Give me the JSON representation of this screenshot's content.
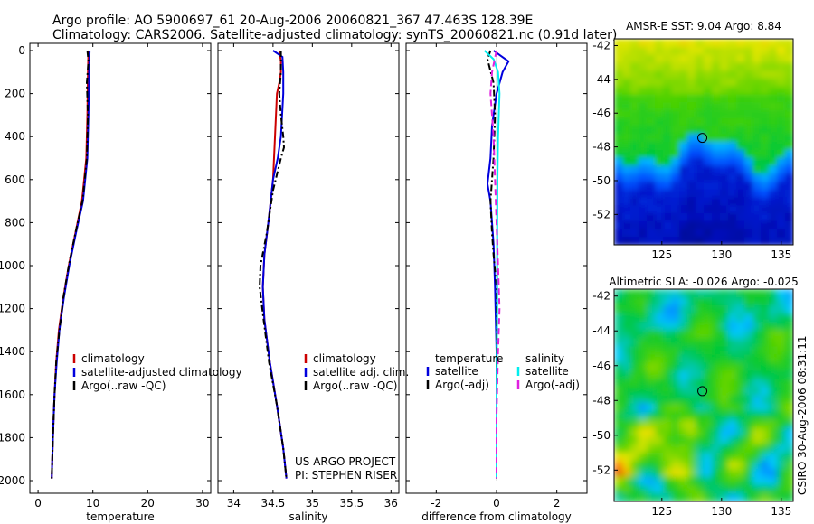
{
  "figure": {
    "title_line1": "Argo profile: AO 5900697_61 20-Aug-2006 20060821_367 47.463S 128.39E",
    "title_line2": "Climatology: CARS2006. Satellite-adjusted climatology: synTS_20060821.nc (0.91d later)",
    "project_line1": "US ARGO PROJECT",
    "project_line2": "PI: STEPHEN RISER",
    "footer": "CSIRO 30-Aug-2006 08:31:11"
  },
  "colors": {
    "climatology": "#cc0000",
    "satellite": "#0000dd",
    "argo": "#000000",
    "satellite_salinity": "#00eeee",
    "argo_salinity_adj": "#e020e0"
  },
  "chart_data": [
    {
      "id": "temperature",
      "type": "line",
      "title": "",
      "xlabel": "temperature",
      "ylabel": "",
      "xlim": [
        -1.5,
        31.5
      ],
      "ylim": [
        2000,
        0
      ],
      "xticks": [
        0,
        10,
        20,
        30
      ],
      "yticks": [
        0,
        200,
        400,
        600,
        800,
        1000,
        1200,
        1400,
        1600,
        1800,
        2000
      ],
      "legend": [
        "climatology",
        "satellite-adjusted climatology",
        "Argo(..raw -QC)"
      ],
      "legend_colors": [
        "#cc0000",
        "#0000dd",
        "#000000"
      ],
      "legend_placement": "lower-right",
      "series": [
        {
          "name": "climatology",
          "color": "#cc0000",
          "dash": "solid",
          "x": [
            9.2,
            9.1,
            9.0,
            8.8,
            8.0,
            6.8,
            5.6,
            4.6,
            3.8,
            3.3,
            3.0,
            2.7,
            2.5
          ],
          "y": [
            0,
            100,
            300,
            500,
            700,
            850,
            1000,
            1150,
            1300,
            1450,
            1600,
            1800,
            1990
          ]
        },
        {
          "name": "satellite-adjusted climatology",
          "color": "#0000dd",
          "dash": "solid",
          "x": [
            9.4,
            9.3,
            9.2,
            9.0,
            8.2,
            6.9,
            5.7,
            4.7,
            3.9,
            3.4,
            3.0,
            2.7,
            2.5
          ],
          "y": [
            0,
            100,
            300,
            500,
            700,
            850,
            1000,
            1150,
            1300,
            1450,
            1600,
            1800,
            1990
          ]
        },
        {
          "name": "Argo(..raw -QC)",
          "color": "#000000",
          "dash": "dashdot",
          "x": [
            9.0,
            9.2,
            8.9,
            9.1,
            8.9,
            8.1,
            6.8,
            5.6,
            4.6,
            3.9,
            3.3,
            3.0,
            2.7,
            2.5
          ],
          "y": [
            0,
            50,
            150,
            300,
            500,
            700,
            850,
            1000,
            1150,
            1300,
            1450,
            1600,
            1800,
            1990
          ]
        }
      ]
    },
    {
      "id": "salinity",
      "type": "line",
      "xlabel": "salinity",
      "ylabel": "",
      "xlim": [
        33.8,
        36.1
      ],
      "ylim": [
        2000,
        0
      ],
      "xticks": [
        34,
        34.5,
        35,
        35.5,
        36
      ],
      "yticks": [],
      "legend": [
        "climatology",
        "satellite adj. clim.",
        "Argo(..raw -QC)"
      ],
      "legend_colors": [
        "#cc0000",
        "#0000dd",
        "#000000"
      ],
      "legend_placement": "lower-right",
      "series": [
        {
          "name": "climatology",
          "color": "#cc0000",
          "dash": "solid",
          "x": [
            34.58,
            34.6,
            34.6,
            34.58,
            34.55,
            34.5,
            34.44,
            34.39,
            34.37,
            34.39,
            34.46,
            34.55,
            34.63,
            34.67
          ],
          "y": [
            0,
            50,
            100,
            150,
            200,
            600,
            800,
            950,
            1100,
            1250,
            1450,
            1650,
            1850,
            1990
          ]
        },
        {
          "name": "satellite adj. clim.",
          "color": "#0000dd",
          "dash": "solid",
          "x": [
            34.5,
            34.62,
            34.63,
            34.63,
            34.6,
            34.56,
            34.5,
            34.44,
            34.39,
            34.37,
            34.39,
            34.46,
            34.55,
            34.63,
            34.67
          ],
          "y": [
            0,
            30,
            100,
            200,
            400,
            500,
            600,
            800,
            950,
            1100,
            1250,
            1450,
            1650,
            1850,
            1990
          ]
        },
        {
          "name": "Argo(..raw -QC)",
          "color": "#000000",
          "dash": "dashdot",
          "x": [
            34.6,
            34.6,
            34.58,
            34.6,
            34.63,
            34.64,
            34.6,
            34.5,
            34.42,
            34.34,
            34.33,
            34.38,
            34.45,
            34.55,
            34.63,
            34.67
          ],
          "y": [
            0,
            100,
            200,
            300,
            400,
            450,
            500,
            650,
            850,
            1000,
            1100,
            1250,
            1450,
            1650,
            1850,
            1990
          ]
        }
      ],
      "annotations": [
        "US ARGO PROJECT",
        "PI: STEPHEN RISER"
      ]
    },
    {
      "id": "difference",
      "type": "line",
      "xlabel": "difference from climatology",
      "ylabel": "",
      "xlim": [
        -3.0,
        3.0
      ],
      "ylim": [
        2000,
        0
      ],
      "xticks": [
        -2,
        0,
        2
      ],
      "yticks": [],
      "legend_headers": [
        "temperature",
        "salinity"
      ],
      "legend": [
        "satellite",
        "Argo(-adj)",
        "satellite",
        "Argo(-adj)"
      ],
      "legend_colors": [
        "#0000dd",
        "#000000",
        "#00eeee",
        "#e020e0"
      ],
      "legend_placement": "lower-right",
      "series": [
        {
          "name": "temperature satellite",
          "color": "#0000dd",
          "dash": "solid",
          "x": [
            -0.1,
            0.1,
            0.4,
            0.2,
            0.0,
            -0.15,
            -0.2,
            -0.3,
            -0.2,
            -0.15,
            -0.1,
            -0.05,
            0.0,
            0.0,
            0.0
          ],
          "y": [
            0,
            20,
            50,
            100,
            200,
            350,
            500,
            620,
            700,
            800,
            900,
            1100,
            1400,
            1700,
            1990
          ]
        },
        {
          "name": "temperature Argo(-adj)",
          "color": "#000000",
          "dash": "dashdot",
          "x": [
            -0.2,
            -0.3,
            -0.1,
            -0.05,
            -0.1,
            -0.2,
            -0.15,
            -0.1,
            0.0,
            0.0,
            0.0
          ],
          "y": [
            0,
            40,
            150,
            300,
            500,
            700,
            850,
            950,
            1100,
            1400,
            1990
          ]
        },
        {
          "name": "salinity satellite",
          "color": "#00eeee",
          "dash": "solid",
          "x": [
            -0.4,
            -0.1,
            0.05,
            0.1,
            0.05,
            0.03,
            0.02,
            0.02,
            0.0,
            0.0
          ],
          "y": [
            0,
            40,
            100,
            200,
            400,
            600,
            900,
            1200,
            1600,
            1990
          ]
        },
        {
          "name": "salinity Argo(-adj)",
          "color": "#e020e0",
          "dash": "dashed",
          "x": [
            0.0,
            -0.15,
            -0.2,
            -0.1,
            -0.05,
            0.0,
            0.05,
            0.1,
            0.05,
            0.0,
            0.0
          ],
          "y": [
            0,
            100,
            200,
            400,
            600,
            800,
            1000,
            1200,
            1400,
            1700,
            1990
          ]
        }
      ]
    },
    {
      "id": "amsre-sst",
      "type": "heatmap",
      "title": "AMSR-E SST: 9.04 Argo: 8.84",
      "xlim": [
        121,
        136
      ],
      "ylim": [
        -53.8,
        -41.6
      ],
      "xticks": [
        125,
        130,
        135
      ],
      "yticks": [
        -42,
        -44,
        -46,
        -48,
        -50,
        -52
      ],
      "marker": {
        "lon": 128.39,
        "lat": -47.463
      }
    },
    {
      "id": "altimetric-sla",
      "type": "heatmap",
      "title": "Altimetric SLA: -0.026 Argo: -0.025",
      "xlim": [
        121,
        136
      ],
      "ylim": [
        -53.8,
        -41.6
      ],
      "xticks": [
        125,
        130,
        135
      ],
      "yticks": [
        -42,
        -44,
        -46,
        -48,
        -50,
        -52
      ],
      "marker": {
        "lon": 128.39,
        "lat": -47.463
      }
    }
  ]
}
